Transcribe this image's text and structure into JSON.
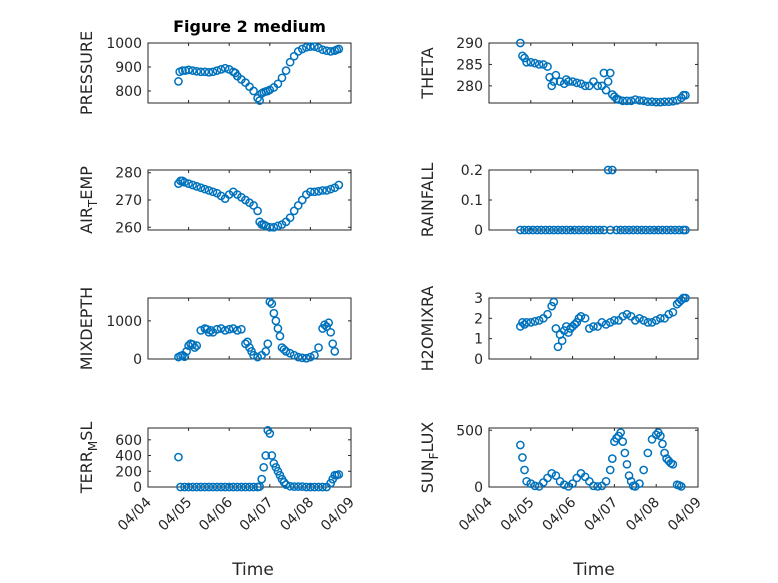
{
  "figure": {
    "title": "Figure 2 medium",
    "accent_color": "#0072bd",
    "x_tick_labels": [
      "04/04",
      "04/05",
      "04/06",
      "04/07",
      "04/08",
      "04/09"
    ],
    "x_axis_label": "Time"
  },
  "chart_data": [
    {
      "id": "pressure",
      "type": "scatter",
      "title": "Figure 2 medium",
      "ylabel": "PRESSURE",
      "ylabel_sub": "",
      "ylabel_tail": "",
      "xlim": [
        4.0,
        9.0
      ],
      "ylim": [
        750,
        1000
      ],
      "yticks": [
        800,
        900,
        1000
      ],
      "grid": true,
      "x": [
        4.75,
        4.78,
        4.85,
        4.92,
        5.0,
        5.1,
        5.2,
        5.3,
        5.4,
        5.5,
        5.6,
        5.7,
        5.8,
        5.9,
        6.0,
        6.1,
        6.15,
        6.2,
        6.3,
        6.4,
        6.5,
        6.6,
        6.7,
        6.75,
        6.8,
        6.85,
        6.9,
        6.95,
        7.0,
        7.1,
        7.2,
        7.3,
        7.4,
        7.5,
        7.6,
        7.7,
        7.8,
        7.9,
        8.0,
        8.1,
        8.2,
        8.3,
        8.4,
        8.5,
        8.6,
        8.65,
        8.7
      ],
      "y": [
        840,
        880,
        885,
        885,
        888,
        885,
        882,
        880,
        880,
        878,
        880,
        885,
        890,
        895,
        890,
        880,
        875,
        862,
        848,
        835,
        818,
        800,
        770,
        760,
        790,
        795,
        798,
        800,
        805,
        815,
        830,
        855,
        885,
        920,
        945,
        965,
        975,
        982,
        985,
        985,
        980,
        972,
        968,
        965,
        968,
        972,
        975
      ]
    },
    {
      "id": "theta",
      "type": "scatter",
      "title": "",
      "ylabel": "THETA",
      "ylabel_sub": "",
      "ylabel_tail": "",
      "xlim": [
        4.0,
        9.0
      ],
      "ylim": [
        276,
        290
      ],
      "yticks": [
        280,
        285,
        290
      ],
      "grid": true,
      "x": [
        4.75,
        4.8,
        4.85,
        4.9,
        5.0,
        5.1,
        5.2,
        5.3,
        5.4,
        5.45,
        5.5,
        5.55,
        5.6,
        5.7,
        5.8,
        5.85,
        5.9,
        6.0,
        6.1,
        6.2,
        6.3,
        6.4,
        6.5,
        6.6,
        6.7,
        6.75,
        6.8,
        6.85,
        6.9,
        6.95,
        7.0,
        7.05,
        7.1,
        7.2,
        7.3,
        7.4,
        7.5,
        7.6,
        7.7,
        7.8,
        7.9,
        8.0,
        8.1,
        8.2,
        8.3,
        8.4,
        8.5,
        8.6,
        8.65,
        8.7
      ],
      "y": [
        290,
        287,
        286.5,
        285.5,
        285.5,
        285.3,
        285,
        285,
        284.5,
        282,
        280,
        281,
        282.5,
        281,
        280.5,
        281.5,
        281,
        281,
        280.7,
        280.5,
        280,
        280,
        281,
        280,
        280,
        283,
        279,
        281,
        283,
        278,
        277.5,
        277,
        276.8,
        276.5,
        276.5,
        276.5,
        276.8,
        276.6,
        276.5,
        276.3,
        276.3,
        276.2,
        276.2,
        276.3,
        276.3,
        276.4,
        276.6,
        277.2,
        277.8,
        277.8
      ]
    },
    {
      "id": "air_temp",
      "type": "scatter",
      "title": "",
      "ylabel": "AIR",
      "ylabel_sub": "T",
      "ylabel_tail": "EMP",
      "xlim": [
        4.0,
        9.0
      ],
      "ylim": [
        259,
        281
      ],
      "yticks": [
        260,
        270,
        280
      ],
      "grid": true,
      "x": [
        4.75,
        4.8,
        4.85,
        4.9,
        5.0,
        5.1,
        5.2,
        5.3,
        5.4,
        5.5,
        5.6,
        5.7,
        5.8,
        5.9,
        6.0,
        6.1,
        6.2,
        6.3,
        6.4,
        6.5,
        6.6,
        6.7,
        6.75,
        6.8,
        6.85,
        6.9,
        7.0,
        7.1,
        7.2,
        7.3,
        7.4,
        7.5,
        7.6,
        7.7,
        7.8,
        7.9,
        8.0,
        8.1,
        8.2,
        8.3,
        8.4,
        8.5,
        8.6,
        8.7
      ],
      "y": [
        276,
        277,
        277,
        276.5,
        276,
        275.5,
        275,
        274.5,
        274,
        273.5,
        273,
        272.5,
        271.5,
        270.5,
        272,
        273,
        272,
        271,
        270,
        269,
        268,
        266,
        262,
        261,
        261,
        260.5,
        260,
        260,
        260.5,
        261,
        262,
        263.5,
        266,
        268,
        270,
        272,
        273,
        273,
        273.2,
        273.5,
        273.5,
        274,
        274.5,
        275.5
      ]
    },
    {
      "id": "rainfall",
      "type": "scatter",
      "title": "",
      "ylabel": "RAINFALL",
      "ylabel_sub": "",
      "ylabel_tail": "",
      "xlim": [
        4.0,
        9.0
      ],
      "ylim": [
        0,
        0.2
      ],
      "yticks": [
        0,
        0.1,
        0.2
      ],
      "grid": true,
      "x": [
        4.75,
        4.85,
        4.95,
        5.05,
        5.15,
        5.25,
        5.35,
        5.45,
        5.55,
        5.65,
        5.75,
        5.85,
        5.95,
        6.05,
        6.15,
        6.25,
        6.35,
        6.45,
        6.55,
        6.65,
        6.75,
        6.85,
        6.9,
        6.95,
        7.05,
        7.15,
        7.25,
        7.35,
        7.45,
        7.55,
        7.65,
        7.75,
        7.85,
        7.95,
        8.05,
        8.15,
        8.25,
        8.35,
        8.45,
        8.55,
        8.65,
        8.7
      ],
      "y": [
        0,
        0,
        0,
        0,
        0,
        0,
        0,
        0,
        0,
        0,
        0,
        0,
        0,
        0,
        0,
        0,
        0,
        0,
        0,
        0,
        0,
        0.2,
        0,
        0.2,
        0,
        0,
        0,
        0,
        0,
        0,
        0,
        0,
        0,
        0,
        0,
        0,
        0,
        0,
        0,
        0,
        0,
        0
      ]
    },
    {
      "id": "mixdepth",
      "type": "scatter",
      "title": "",
      "ylabel": "MIXDEPTH",
      "ylabel_sub": "",
      "ylabel_tail": "",
      "xlim": [
        4.0,
        9.0
      ],
      "ylim": [
        0,
        1600
      ],
      "yticks": [
        0,
        1000
      ],
      "grid": true,
      "x": [
        4.75,
        4.8,
        4.85,
        4.9,
        4.95,
        5.0,
        5.05,
        5.1,
        5.15,
        5.2,
        5.3,
        5.4,
        5.45,
        5.5,
        5.55,
        5.6,
        5.7,
        5.8,
        5.9,
        6.0,
        6.1,
        6.2,
        6.3,
        6.4,
        6.45,
        6.5,
        6.55,
        6.6,
        6.7,
        6.8,
        6.9,
        6.95,
        7.0,
        7.05,
        7.1,
        7.15,
        7.2,
        7.25,
        7.3,
        7.35,
        7.4,
        7.5,
        7.6,
        7.7,
        7.8,
        7.9,
        8.0,
        8.1,
        8.2,
        8.3,
        8.35,
        8.4,
        8.45,
        8.5,
        8.55,
        8.6
      ],
      "y": [
        50,
        80,
        100,
        60,
        200,
        350,
        400,
        380,
        300,
        350,
        750,
        800,
        780,
        700,
        750,
        700,
        780,
        800,
        750,
        780,
        800,
        750,
        780,
        400,
        450,
        300,
        200,
        100,
        50,
        100,
        200,
        400,
        1500,
        1450,
        1200,
        1000,
        800,
        600,
        300,
        250,
        200,
        150,
        100,
        50,
        30,
        20,
        50,
        100,
        300,
        800,
        900,
        850,
        950,
        700,
        400,
        200
      ]
    },
    {
      "id": "h2omixra",
      "type": "scatter",
      "title": "",
      "ylabel": "H2OMIXRA",
      "ylabel_sub": "",
      "ylabel_tail": "",
      "xlim": [
        4.0,
        9.0
      ],
      "ylim": [
        0,
        3
      ],
      "yticks": [
        0,
        1,
        2,
        3
      ],
      "grid": true,
      "x": [
        4.75,
        4.8,
        4.85,
        4.9,
        5.0,
        5.1,
        5.2,
        5.3,
        5.4,
        5.5,
        5.55,
        5.6,
        5.65,
        5.7,
        5.75,
        5.8,
        5.85,
        5.9,
        5.95,
        6.0,
        6.05,
        6.1,
        6.15,
        6.2,
        6.3,
        6.4,
        6.5,
        6.6,
        6.7,
        6.8,
        6.9,
        7.0,
        7.1,
        7.2,
        7.3,
        7.4,
        7.5,
        7.6,
        7.7,
        7.8,
        7.9,
        8.0,
        8.1,
        8.2,
        8.3,
        8.4,
        8.5,
        8.55,
        8.6,
        8.65,
        8.7
      ],
      "y": [
        1.6,
        1.8,
        1.7,
        1.8,
        1.8,
        1.85,
        1.9,
        2.0,
        2.2,
        2.6,
        2.8,
        1.5,
        0.6,
        1.2,
        0.9,
        1.4,
        1.6,
        1.3,
        1.5,
        1.6,
        1.7,
        1.8,
        2.0,
        2.1,
        2.0,
        1.5,
        1.6,
        1.6,
        1.8,
        1.7,
        1.8,
        1.9,
        1.9,
        2.1,
        2.2,
        2.1,
        1.9,
        2.0,
        1.9,
        1.8,
        1.8,
        1.9,
        2.0,
        2.0,
        2.2,
        2.3,
        2.7,
        2.8,
        2.9,
        3.0,
        3.0
      ]
    },
    {
      "id": "terr_msl",
      "type": "scatter",
      "title": "",
      "ylabel": "TERR",
      "ylabel_sub": "M",
      "ylabel_tail": "SL",
      "xlim": [
        4.0,
        9.0
      ],
      "ylim": [
        0,
        750
      ],
      "yticks": [
        0,
        200,
        400,
        600
      ],
      "grid": true,
      "x": [
        4.75,
        4.8,
        4.9,
        5.0,
        5.1,
        5.2,
        5.3,
        5.4,
        5.5,
        5.6,
        5.7,
        5.8,
        5.9,
        6.0,
        6.1,
        6.2,
        6.3,
        6.4,
        6.5,
        6.6,
        6.7,
        6.75,
        6.8,
        6.85,
        6.9,
        6.95,
        7.0,
        7.05,
        7.1,
        7.15,
        7.2,
        7.25,
        7.3,
        7.35,
        7.4,
        7.5,
        7.6,
        7.7,
        7.8,
        7.9,
        8.0,
        8.1,
        8.2,
        8.3,
        8.4,
        8.5,
        8.55,
        8.6,
        8.65,
        8.7
      ],
      "y": [
        380,
        0,
        0,
        0,
        0,
        0,
        0,
        0,
        0,
        0,
        0,
        0,
        0,
        0,
        0,
        0,
        0,
        0,
        0,
        0,
        0,
        5,
        100,
        250,
        400,
        720,
        680,
        400,
        300,
        250,
        200,
        150,
        100,
        60,
        30,
        10,
        5,
        5,
        5,
        0,
        0,
        0,
        0,
        0,
        0,
        50,
        100,
        150,
        150,
        160
      ]
    },
    {
      "id": "sun_flux",
      "type": "scatter",
      "title": "",
      "ylabel": "SUN",
      "ylabel_sub": "F",
      "ylabel_tail": "LUX",
      "xlim": [
        4.0,
        9.0
      ],
      "ylim": [
        0,
        520
      ],
      "yticks": [
        0,
        500
      ],
      "grid": true,
      "x": [
        4.75,
        4.8,
        4.85,
        4.9,
        5.0,
        5.1,
        5.2,
        5.3,
        5.4,
        5.5,
        5.6,
        5.7,
        5.8,
        5.9,
        6.0,
        6.1,
        6.2,
        6.3,
        6.4,
        6.5,
        6.6,
        6.7,
        6.8,
        6.9,
        6.95,
        7.0,
        7.05,
        7.1,
        7.15,
        7.2,
        7.25,
        7.3,
        7.35,
        7.4,
        7.45,
        7.5,
        7.6,
        7.7,
        7.8,
        7.9,
        8.0,
        8.05,
        8.1,
        8.15,
        8.2,
        8.25,
        8.3,
        8.35,
        8.4,
        8.5,
        8.55,
        8.6
      ],
      "y": [
        370,
        260,
        150,
        50,
        30,
        10,
        5,
        40,
        80,
        120,
        100,
        50,
        20,
        5,
        30,
        80,
        120,
        90,
        50,
        10,
        5,
        10,
        50,
        150,
        250,
        400,
        430,
        450,
        480,
        400,
        300,
        200,
        100,
        50,
        10,
        5,
        30,
        150,
        300,
        420,
        460,
        480,
        450,
        380,
        300,
        250,
        230,
        210,
        200,
        20,
        15,
        5
      ]
    }
  ]
}
